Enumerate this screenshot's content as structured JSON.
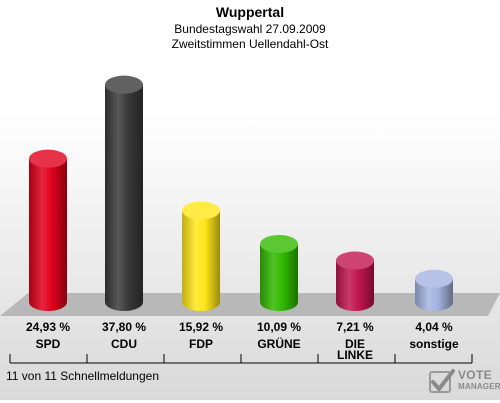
{
  "header": {
    "title": "Wuppertal",
    "subtitle1": "Bundestagswahl 27.09.2009",
    "subtitle2": "Zweitstimmen Uellendahl-Ost"
  },
  "footer": {
    "status": "11 von 11 Schnellmeldungen",
    "logo_line1": "VOTE",
    "logo_line2": "MANAGER"
  },
  "chart_data": {
    "type": "bar",
    "categories": [
      "SPD",
      "CDU",
      "FDP",
      "GRÜNE",
      "DIE LINKE",
      "sonstige"
    ],
    "values": [
      24.93,
      37.8,
      15.92,
      10.09,
      7.21,
      4.04
    ],
    "value_labels": [
      "24,93 %",
      "37,80 %",
      "15,92 %",
      "10,09 %",
      "7,21 %",
      "4,04 %"
    ],
    "colors": [
      "#e0001b",
      "#3a3a3a",
      "#ffe619",
      "#31b900",
      "#c0154f",
      "#a4b4e0"
    ],
    "ylim": [
      0,
      40
    ]
  }
}
